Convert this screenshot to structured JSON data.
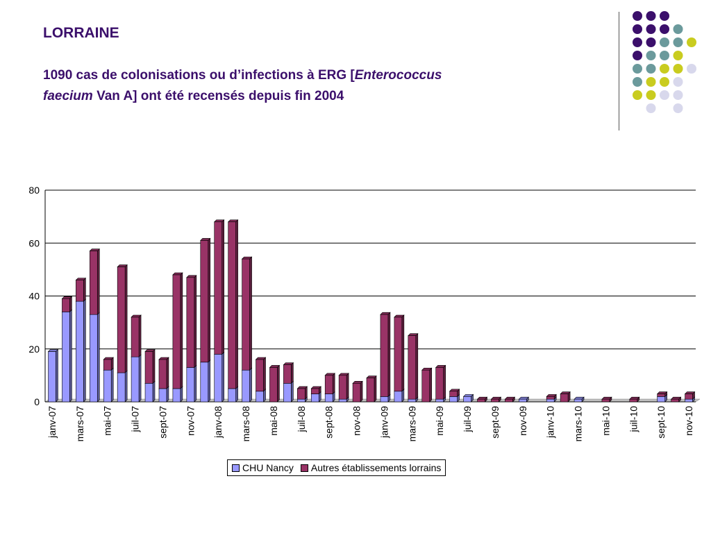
{
  "slide": {
    "heading": "LORRAINE",
    "subtitle_part1": "1090 cas de colonisations ou d’infections à ERG [",
    "subtitle_italic1": "Enterococcus",
    "subtitle_italic2": "faecium",
    "subtitle_part2": " Van A] ont été recensés depuis fin 2004"
  },
  "decoration": {
    "dot_colors": {
      "purple": "#3b0f6b",
      "teal": "#6b9a9c",
      "yellow": "#c9cc1f",
      "lavender": "#d8d8ec"
    }
  },
  "chart_data": {
    "type": "bar",
    "stacked": true,
    "x": [
      "janv-07",
      "févr-07",
      "mars-07",
      "avr-07",
      "mai-07",
      "juin-07",
      "juil-07",
      "août-07",
      "sept-07",
      "oct-07",
      "nov-07",
      "déc-07",
      "janv-08",
      "févr-08",
      "mars-08",
      "avr-08",
      "mai-08",
      "juin-08",
      "juil-08",
      "août-08",
      "sept-08",
      "oct-08",
      "nov-08",
      "déc-08",
      "janv-09",
      "févr-09",
      "mars-09",
      "avr-09",
      "mai-09",
      "juin-09",
      "juil-09",
      "août-09",
      "sept-09",
      "oct-09",
      "nov-09",
      "déc-09",
      "janv-10",
      "févr-10",
      "mars-10",
      "avr-10",
      "mai-10",
      "juin-10",
      "juil-10",
      "août-10",
      "sept-10",
      "oct-10",
      "nov-10"
    ],
    "tick_labels": [
      "janv-07",
      "mars-07",
      "mai-07",
      "juil-07",
      "sept-07",
      "nov-07",
      "janv-08",
      "mars-08",
      "mai-08",
      "juil-08",
      "sept-08",
      "nov-08",
      "janv-09",
      "mars-09",
      "mai-09",
      "juil-09",
      "sept-09",
      "nov-09",
      "janv-10",
      "mars-10",
      "mai-10",
      "juil-10",
      "sept-10",
      "nov-10"
    ],
    "series": [
      {
        "name": "CHU Nancy",
        "color": "#9999ff",
        "values": [
          19,
          34,
          38,
          33,
          12,
          11,
          17,
          7,
          5,
          5,
          13,
          15,
          18,
          5,
          12,
          4,
          0,
          7,
          1,
          3,
          3,
          1,
          0,
          0,
          2,
          4,
          1,
          0,
          1,
          2,
          2,
          0,
          0,
          0,
          1,
          0,
          1,
          0,
          1,
          0,
          0,
          0,
          0,
          0,
          2,
          0,
          1
        ]
      },
      {
        "name": "Autres établissements lorrains",
        "color": "#993366",
        "values": [
          0,
          5,
          8,
          24,
          4,
          40,
          15,
          12,
          11,
          43,
          34,
          46,
          50,
          63,
          42,
          12,
          13,
          7,
          4,
          2,
          7,
          9,
          7,
          9,
          31,
          28,
          24,
          12,
          12,
          2,
          0,
          1,
          1,
          1,
          0,
          0,
          1,
          3,
          0,
          0,
          1,
          0,
          1,
          0,
          1,
          1,
          2
        ]
      }
    ],
    "ylim": [
      0,
      80
    ],
    "yticks": [
      0,
      20,
      40,
      60,
      80
    ],
    "grid": true,
    "legend_position": "bottom"
  }
}
